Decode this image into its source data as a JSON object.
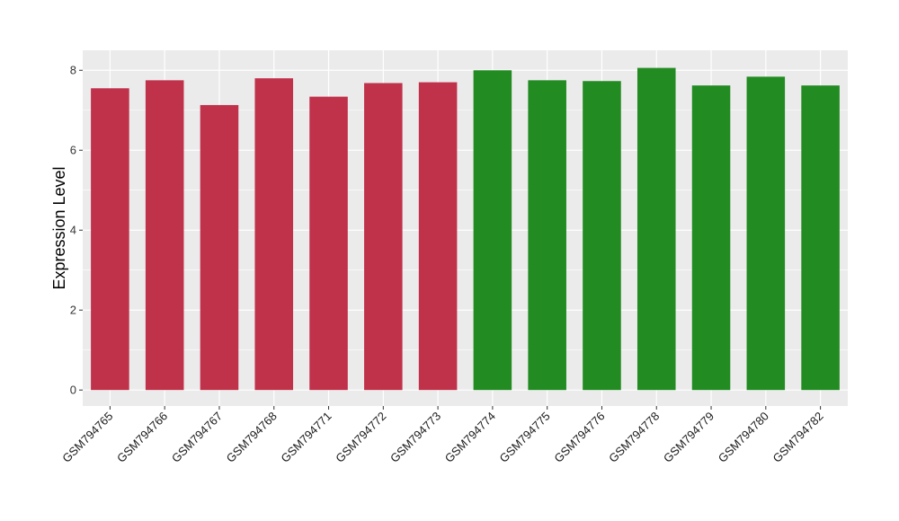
{
  "chart_data": {
    "type": "bar",
    "title": "",
    "xlabel": "",
    "ylabel": "Expression Level",
    "ylim": [
      -0.4,
      8.5
    ],
    "yticks": [
      0,
      2,
      4,
      6,
      8
    ],
    "grid": true,
    "legend": "none",
    "categories": [
      "GSM794765",
      "GSM794766",
      "GSM794767",
      "GSM794768",
      "GSM794771",
      "GSM794772",
      "GSM794773",
      "GSM794774",
      "GSM794775",
      "GSM794776",
      "GSM794778",
      "GSM794779",
      "GSM794780",
      "GSM794782"
    ],
    "values": [
      7.55,
      7.75,
      7.13,
      7.8,
      7.34,
      7.68,
      7.7,
      8.0,
      7.75,
      7.73,
      8.06,
      7.62,
      7.84,
      7.62
    ],
    "group_colors": [
      "#c0314a",
      "#c0314a",
      "#c0314a",
      "#c0314a",
      "#c0314a",
      "#c0314a",
      "#c0314a",
      "#228b22",
      "#228b22",
      "#228b22",
      "#228b22",
      "#228b22",
      "#228b22",
      "#228b22"
    ],
    "panel_color": "#ebebeb",
    "grid_color": "#ffffff"
  }
}
